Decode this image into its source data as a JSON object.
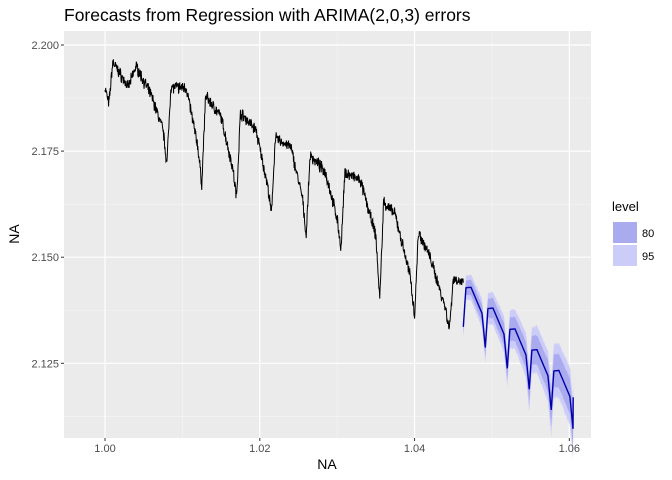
{
  "chart_data": {
    "type": "line",
    "title": "Forecasts from Regression with ARIMA(2,0,3) errors",
    "xlabel": "NA",
    "ylabel": "NA",
    "xlim": [
      0.9947,
      1.0628
    ],
    "ylim": [
      2.1074,
      2.2033
    ],
    "x_ticks": [
      1.0,
      1.02,
      1.04,
      1.06
    ],
    "x_tick_labels": [
      "1.00",
      "1.02",
      "1.04",
      "1.06"
    ],
    "y_ticks": [
      2.125,
      2.15,
      2.175,
      2.2
    ],
    "y_tick_labels": [
      "2.125",
      "2.150",
      "2.175",
      "2.200"
    ],
    "grid": true,
    "legend": {
      "title": "level",
      "placement": "right",
      "entries": [
        {
          "label": "80",
          "color": "#aaaaee"
        },
        {
          "label": "95",
          "color": "#ccccf9"
        }
      ]
    },
    "historical": {
      "color": "#000000",
      "x_start": 1.0,
      "x_end": 1.0463,
      "points": [
        [
          1.0,
          2.19
        ],
        [
          1.0005,
          2.186
        ],
        [
          1.001,
          2.196
        ],
        [
          1.002,
          2.193
        ],
        [
          1.003,
          2.19
        ],
        [
          1.004,
          2.195
        ],
        [
          1.006,
          2.188
        ],
        [
          1.0075,
          2.18
        ],
        [
          1.008,
          2.172
        ],
        [
          1.0085,
          2.19
        ],
        [
          1.0105,
          2.19
        ],
        [
          1.012,
          2.176
        ],
        [
          1.0125,
          2.167
        ],
        [
          1.013,
          2.188
        ],
        [
          1.015,
          2.183
        ],
        [
          1.0165,
          2.171
        ],
        [
          1.017,
          2.164
        ],
        [
          1.0175,
          2.184
        ],
        [
          1.0195,
          2.18
        ],
        [
          1.021,
          2.167
        ],
        [
          1.0215,
          2.16
        ],
        [
          1.022,
          2.178
        ],
        [
          1.024,
          2.176
        ],
        [
          1.0255,
          2.164
        ],
        [
          1.026,
          2.155
        ],
        [
          1.0265,
          2.174
        ],
        [
          1.0285,
          2.17
        ],
        [
          1.03,
          2.159
        ],
        [
          1.0305,
          2.152
        ],
        [
          1.031,
          2.17
        ],
        [
          1.033,
          2.168
        ],
        [
          1.035,
          2.155
        ],
        [
          1.0355,
          2.14
        ],
        [
          1.036,
          2.163
        ],
        [
          1.0375,
          2.16
        ],
        [
          1.0395,
          2.145
        ],
        [
          1.04,
          2.136
        ],
        [
          1.0405,
          2.156
        ],
        [
          1.042,
          2.15
        ],
        [
          1.044,
          2.138
        ],
        [
          1.0445,
          2.133
        ],
        [
          1.045,
          2.145
        ],
        [
          1.0463,
          2.144
        ]
      ]
    },
    "forecast": {
      "color": "#0000aa",
      "x_start": 1.0463,
      "x_end": 1.0605,
      "n_cycles": 5,
      "start_level": 2.1385,
      "end_level": 2.117,
      "peak_height": 2.1423,
      "trough_depth": 2.127,
      "pi80_halfwidth_start": 0.0015,
      "pi80_halfwidth_end": 0.004,
      "pi95_halfwidth_start": 0.0025,
      "pi95_halfwidth_end": 0.0065
    }
  }
}
